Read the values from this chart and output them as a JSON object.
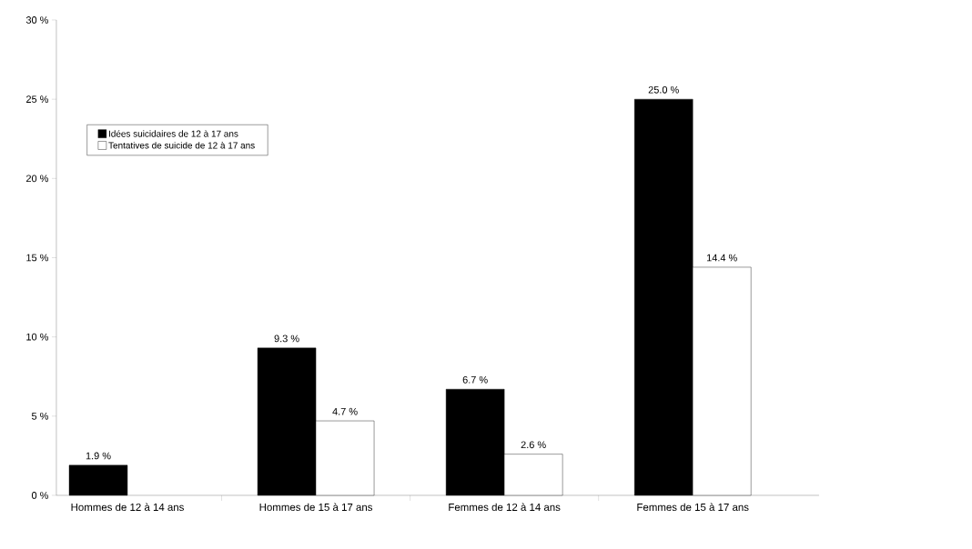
{
  "chart_data": {
    "type": "bar",
    "categories": [
      "Hommes de 12 à 14 ans",
      "Hommes de 15 à 17 ans",
      "Femmes de 12 à 14 ans",
      "Femmes de 15 à 17 ans"
    ],
    "series": [
      {
        "name": "Idées suicidaires de 12 à 17 ans",
        "color": "#000000",
        "values": [
          1.9,
          9.3,
          6.7,
          25.0
        ],
        "value_labels": [
          "1.9 %",
          "9.3 %",
          "6.7 %",
          "25.0 %"
        ]
      },
      {
        "name": "Tentatives de suicide de 12 à 17 ans",
        "color": "#ffffff",
        "values": [
          null,
          4.7,
          2.6,
          14.4
        ],
        "value_labels": [
          null,
          "4.7 %",
          "2.6 %",
          "14.4 %"
        ]
      }
    ],
    "ylim": [
      0,
      30
    ],
    "yticks": [
      {
        "value": 0,
        "label": "0 %"
      },
      {
        "value": 5,
        "label": "5 %"
      },
      {
        "value": 10,
        "label": "10 %"
      },
      {
        "value": 15,
        "label": "15 %"
      },
      {
        "value": 20,
        "label": "20 %"
      },
      {
        "value": 25,
        "label": "25 %"
      },
      {
        "value": 30,
        "label": "30 %"
      }
    ],
    "grid": false,
    "legend": "top left"
  }
}
